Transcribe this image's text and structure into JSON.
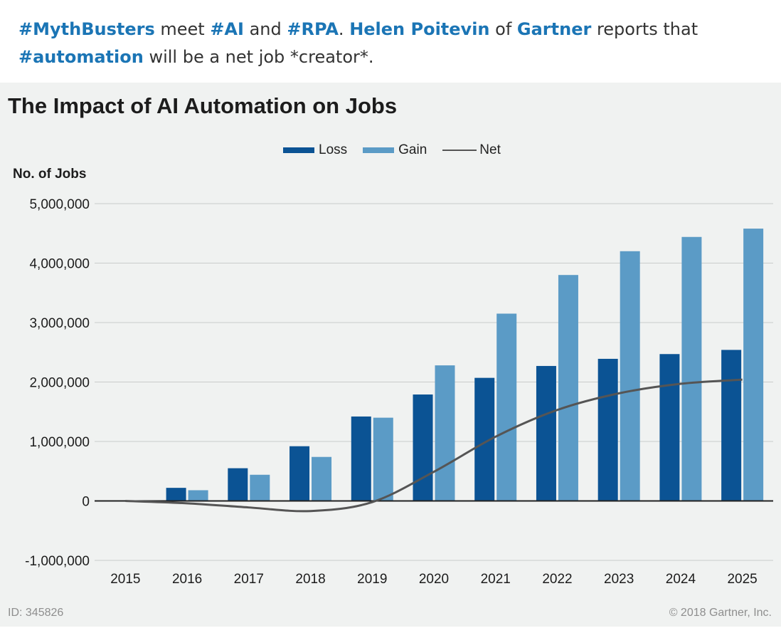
{
  "post": {
    "parts": [
      {
        "text": "#MythBusters",
        "hl": true
      },
      {
        "text": " meet ",
        "hl": false
      },
      {
        "text": "#AI",
        "hl": true
      },
      {
        "text": " and ",
        "hl": false
      },
      {
        "text": "#RPA",
        "hl": true
      },
      {
        "text": ".  ",
        "hl": false
      },
      {
        "text": "Helen Poitevin",
        "hl": true
      },
      {
        "text": " of ",
        "hl": false
      },
      {
        "text": "Gartner",
        "hl": true
      },
      {
        "text": " reports that ",
        "hl": false
      },
      {
        "text": "#automation",
        "hl": true
      },
      {
        "text": " will be a net job *creator*.",
        "hl": false
      }
    ]
  },
  "colors": {
    "loss": "#0b5394",
    "gain": "#5b9bc6",
    "net": "#555555",
    "hashtag": "#1b75b5"
  },
  "chart_data": {
    "type": "bar",
    "title": "The Impact of AI Automation on Jobs",
    "ylabel": "No. of Jobs",
    "xlabel": "",
    "categories": [
      "2015",
      "2016",
      "2017",
      "2018",
      "2019",
      "2020",
      "2021",
      "2022",
      "2023",
      "2024",
      "2025"
    ],
    "series": [
      {
        "name": "Loss",
        "type": "bar",
        "values": [
          0,
          220000,
          550000,
          920000,
          1420000,
          1790000,
          2070000,
          2270000,
          2390000,
          2470000,
          2540000
        ]
      },
      {
        "name": "Gain",
        "type": "bar",
        "values": [
          0,
          180000,
          440000,
          740000,
          1400000,
          2280000,
          3150000,
          3800000,
          4200000,
          4440000,
          4580000
        ]
      },
      {
        "name": "Net",
        "type": "line",
        "values": [
          0,
          -40000,
          -110000,
          -170000,
          -20000,
          490000,
          1080000,
          1530000,
          1810000,
          1970000,
          2040000
        ]
      }
    ],
    "ylim": [
      -1000000,
      5000000
    ],
    "yticks": [
      5000000,
      4000000,
      3000000,
      2000000,
      1000000,
      0,
      -1000000
    ],
    "ytick_labels": [
      "5,000,000",
      "4,000,000",
      "3,000,000",
      "2,000,000",
      "1,000,000",
      "0",
      "-1,000,000"
    ],
    "grid": true,
    "legend": "top-center"
  },
  "footer": {
    "id": "ID: 345826",
    "copyright": "© 2018 Gartner, Inc."
  }
}
